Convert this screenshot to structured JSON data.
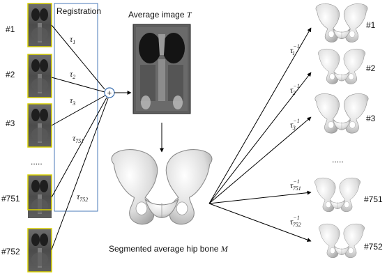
{
  "registration_label": "Registration",
  "average_image_label": "Average image",
  "average_image_symbol": "T",
  "segmented_label": "Segmented average hip bone",
  "segmented_symbol": "M",
  "sum_symbol": "+",
  "ellipsis": ".....",
  "inputs": [
    {
      "id": "#1",
      "tau": "τ",
      "sub": "1"
    },
    {
      "id": "#2",
      "tau": "τ",
      "sub": "2"
    },
    {
      "id": "#3",
      "tau": "τ",
      "sub": "3"
    },
    {
      "id": "#751",
      "tau": "τ",
      "sub": "751"
    },
    {
      "id": "#752",
      "tau": "τ",
      "sub": "752"
    }
  ],
  "outputs": [
    {
      "id": "#1",
      "tau": "τ",
      "sup": "−1",
      "sub": "1"
    },
    {
      "id": "#2",
      "tau": "τ",
      "sup": "−1",
      "sub": "2"
    },
    {
      "id": "#3",
      "tau": "τ",
      "sup": "−1",
      "sub": "3"
    },
    {
      "id": "#751",
      "tau": "τ",
      "sup": "−1",
      "sub": "751"
    },
    {
      "id": "#752",
      "tau": "τ",
      "sup": "−1",
      "sub": "752"
    }
  ],
  "colors": {
    "registration_box": "#4a7ab8",
    "thumb_border": "#d8d000",
    "sum_circle": "#3a6fb0"
  }
}
